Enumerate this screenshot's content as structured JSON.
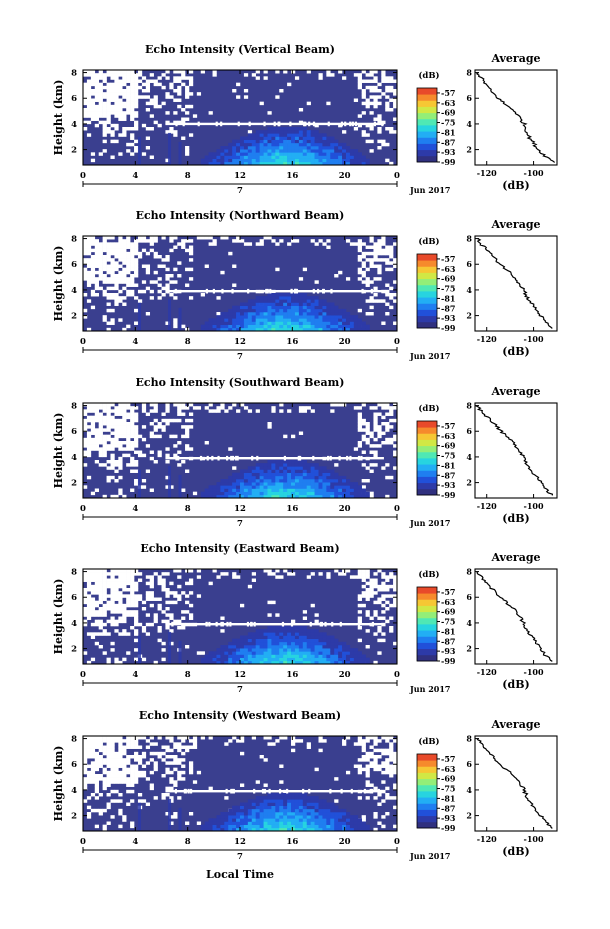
{
  "figure": {
    "xlabel_bottom": "Local Time",
    "date_label": "Jun 2017",
    "day_label": "7",
    "cbar_units": "(dB)",
    "avg_title": "Average",
    "avg_xlabel": "(dB)",
    "ylabel": "Height (km)"
  },
  "colors": {
    "background_fill": "#3a3f8f",
    "missing": "#ffffff",
    "colormap": [
      "#30307f",
      "#2d3aa8",
      "#2150d9",
      "#1f7ef0",
      "#22aef4",
      "#27d4e0",
      "#4fe8b4",
      "#93ee78",
      "#d1e845",
      "#f6c734",
      "#f68a2c",
      "#e84a2a"
    ]
  },
  "chart_data": [
    {
      "type": "heatmap",
      "title": "Echo Intensity (Vertical Beam)",
      "xlabel": "Local Time",
      "ylabel": "Height (km)",
      "xlim": [
        0,
        24
      ],
      "ylim": [
        0.8,
        8.2
      ],
      "x_ticks": [
        "0",
        "4",
        "8",
        "12",
        "16",
        "20",
        "0"
      ],
      "y_ticks": [
        "2",
        "4",
        "6",
        "8"
      ],
      "colorbar": {
        "units": "(dB)",
        "range": [
          -99,
          -54
        ],
        "ticks": [
          "-57",
          "-63",
          "-69",
          "-75",
          "-81",
          "-87",
          "-93",
          "-99"
        ]
      },
      "bright_layer_height_km": 4.0,
      "avg_profile": {
        "title": "Average",
        "xlabel": "(dB)",
        "xlim": [
          -125,
          -90
        ],
        "x_ticks": [
          "-120",
          "-100"
        ],
        "heights_km": [
          8,
          7.5,
          7,
          6.5,
          6,
          5.5,
          5,
          4.5,
          4,
          3.5,
          3,
          2.5,
          2,
          1.5,
          1
        ],
        "values_db": [
          -124,
          -122,
          -120,
          -118,
          -115,
          -112,
          -108,
          -106,
          -104,
          -103,
          -102,
          -100,
          -98,
          -95,
          -91
        ]
      }
    },
    {
      "type": "heatmap",
      "title": "Echo Intensity (Northward Beam)",
      "xlabel": "Local Time",
      "ylabel": "Height (km)",
      "xlim": [
        0,
        24
      ],
      "ylim": [
        0.8,
        8.2
      ],
      "x_ticks": [
        "0",
        "4",
        "8",
        "12",
        "16",
        "20",
        "0"
      ],
      "y_ticks": [
        "2",
        "4",
        "6",
        "8"
      ],
      "colorbar": {
        "units": "(dB)",
        "range": [
          -99,
          -54
        ],
        "ticks": [
          "-57",
          "-63",
          "-69",
          "-75",
          "-81",
          "-87",
          "-93",
          "-99"
        ]
      },
      "bright_layer_height_km": 3.9,
      "avg_profile": {
        "title": "Average",
        "xlabel": "(dB)",
        "xlim": [
          -125,
          -90
        ],
        "x_ticks": [
          "-120",
          "-100"
        ],
        "heights_km": [
          8,
          7.5,
          7,
          6.5,
          6,
          5.5,
          5,
          4.5,
          4,
          3.5,
          3,
          2.5,
          2,
          1.5,
          1
        ],
        "values_db": [
          -124,
          -122,
          -119,
          -117,
          -114,
          -111,
          -108,
          -106,
          -104,
          -103,
          -101,
          -99,
          -97,
          -95,
          -92
        ]
      }
    },
    {
      "type": "heatmap",
      "title": "Echo Intensity (Southward Beam)",
      "xlabel": "Local Time",
      "ylabel": "Height (km)",
      "xlim": [
        0,
        24
      ],
      "ylim": [
        0.8,
        8.2
      ],
      "x_ticks": [
        "0",
        "4",
        "8",
        "12",
        "16",
        "20",
        "0"
      ],
      "y_ticks": [
        "2",
        "4",
        "6",
        "8"
      ],
      "colorbar": {
        "units": "(dB)",
        "range": [
          -99,
          -54
        ],
        "ticks": [
          "-57",
          "-63",
          "-69",
          "-75",
          "-81",
          "-87",
          "-93",
          "-99"
        ]
      },
      "bright_layer_height_km": 3.9,
      "avg_profile": {
        "title": "Average",
        "xlabel": "(dB)",
        "xlim": [
          -125,
          -90
        ],
        "x_ticks": [
          "-120",
          "-100"
        ],
        "heights_km": [
          8,
          7.5,
          7,
          6.5,
          6,
          5.5,
          5,
          4.5,
          4,
          3.5,
          3,
          2.5,
          2,
          1.5,
          1
        ],
        "values_db": [
          -124,
          -122,
          -119,
          -116,
          -114,
          -111,
          -108,
          -106,
          -104,
          -103,
          -101,
          -99,
          -97,
          -95,
          -92
        ]
      }
    },
    {
      "type": "heatmap",
      "title": "Echo Intensity (Eastward Beam)",
      "xlabel": "Local Time",
      "ylabel": "Height (km)",
      "xlim": [
        0,
        24
      ],
      "ylim": [
        0.8,
        8.2
      ],
      "x_ticks": [
        "0",
        "4",
        "8",
        "12",
        "16",
        "20",
        "0"
      ],
      "y_ticks": [
        "2",
        "4",
        "6",
        "8"
      ],
      "colorbar": {
        "units": "(dB)",
        "range": [
          -99,
          -54
        ],
        "ticks": [
          "-57",
          "-63",
          "-69",
          "-75",
          "-81",
          "-87",
          "-93",
          "-99"
        ]
      },
      "bright_layer_height_km": 3.9,
      "avg_profile": {
        "title": "Average",
        "xlabel": "(dB)",
        "xlim": [
          -125,
          -90
        ],
        "x_ticks": [
          "-120",
          "-100"
        ],
        "heights_km": [
          8,
          7.5,
          7,
          6.5,
          6,
          5.5,
          5,
          4.5,
          4,
          3.5,
          3,
          2.5,
          2,
          1.5,
          1
        ],
        "values_db": [
          -124,
          -122,
          -119,
          -117,
          -114,
          -111,
          -108,
          -106,
          -104,
          -103,
          -101,
          -99,
          -97,
          -95,
          -92
        ]
      }
    },
    {
      "type": "heatmap",
      "title": "Echo Intensity (Westward Beam)",
      "xlabel": "Local Time",
      "ylabel": "Height (km)",
      "xlim": [
        0,
        24
      ],
      "ylim": [
        0.8,
        8.2
      ],
      "x_ticks": [
        "0",
        "4",
        "8",
        "12",
        "16",
        "20",
        "0"
      ],
      "y_ticks": [
        "2",
        "4",
        "6",
        "8"
      ],
      "colorbar": {
        "units": "(dB)",
        "range": [
          -99,
          -54
        ],
        "ticks": [
          "-57",
          "-63",
          "-69",
          "-75",
          "-81",
          "-87",
          "-93",
          "-99"
        ]
      },
      "bright_layer_height_km": 3.9,
      "avg_profile": {
        "title": "Average",
        "xlabel": "(dB)",
        "xlim": [
          -125,
          -90
        ],
        "x_ticks": [
          "-120",
          "-100"
        ],
        "heights_km": [
          8,
          7.5,
          7,
          6.5,
          6,
          5.5,
          5,
          4.5,
          4,
          3.5,
          3,
          2.5,
          2,
          1.5,
          1
        ],
        "values_db": [
          -124,
          -122,
          -119,
          -117,
          -114,
          -111,
          -108,
          -106,
          -104,
          -103,
          -101,
          -99,
          -97,
          -95,
          -92
        ]
      }
    }
  ]
}
